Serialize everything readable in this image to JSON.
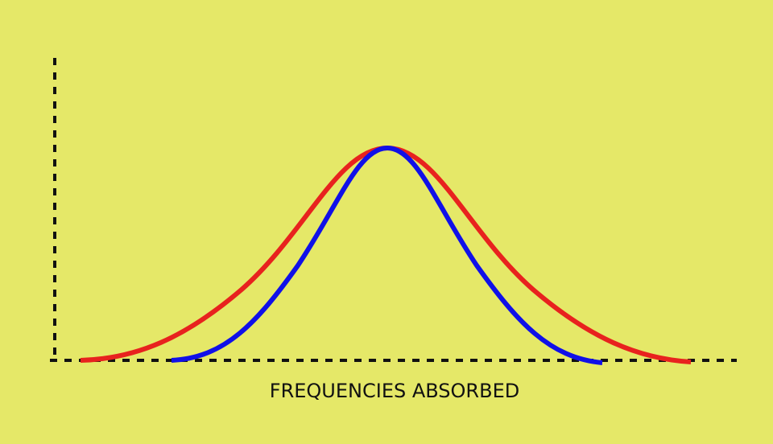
{
  "diagram": {
    "x_axis_label": "FREQUENCIES ABSORBED"
  }
}
